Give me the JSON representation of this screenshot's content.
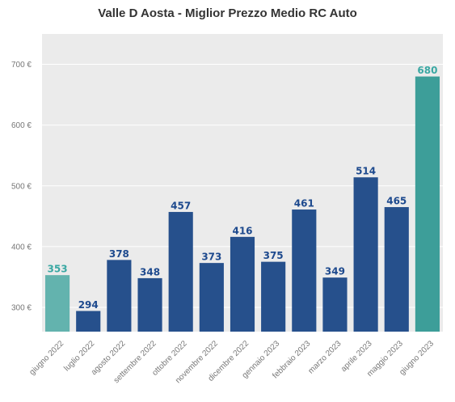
{
  "chart_data": {
    "type": "bar",
    "title": "Valle D Aosta - Miglior Prezzo Medio RC Auto",
    "xlabel": "",
    "ylabel": "",
    "categories": [
      "giugno 2022",
      "luglio 2022",
      "agosto 2022",
      "settembre 2022",
      "ottobre 2022",
      "novembre 2022",
      "dicembre 2022",
      "gennaio 2023",
      "febbraio 2023",
      "marzo 2023",
      "aprile 2023",
      "maggio 2023",
      "giugno 2023"
    ],
    "values": [
      353,
      294,
      378,
      348,
      457,
      373,
      416,
      375,
      461,
      349,
      514,
      465,
      680
    ],
    "data_labels": [
      "353",
      "294",
      "378",
      "348",
      "457",
      "373",
      "416",
      "375",
      "461",
      "349",
      "514",
      "465",
      "680"
    ],
    "highlight": [
      0,
      12
    ],
    "ylim": [
      260,
      750
    ],
    "yticks": [
      300,
      400,
      500,
      600,
      700
    ],
    "ytick_labels": [
      "300 €",
      "400 €",
      "500 €",
      "600 €",
      "700 €"
    ],
    "grid": true,
    "colors": {
      "bar": "#26508c",
      "highlight_first": "#63b3ae",
      "highlight_last": "#3d9e99",
      "label": "#1e4a8e",
      "highlight_label": "#3aa8a3",
      "plot_bg": "#ebebeb",
      "grid": "#ffffff",
      "tick_text": "#777777"
    }
  }
}
